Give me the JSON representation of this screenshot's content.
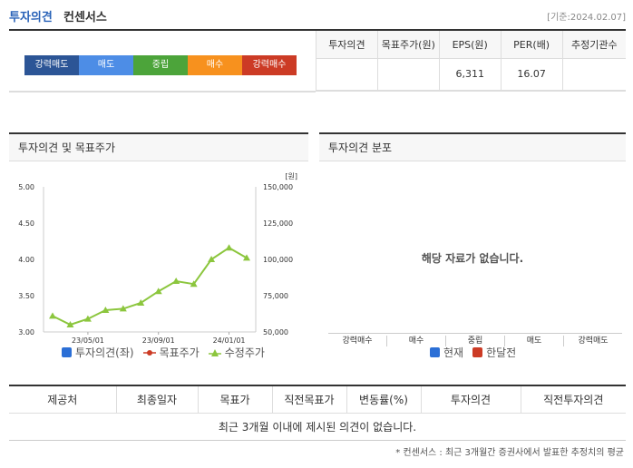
{
  "header": {
    "title_main": "투자의견",
    "title_sub": "컨센서스",
    "date": "[기준:2024.02.07]"
  },
  "opinion_buttons": [
    {
      "label": "강력매도",
      "color": "#2c5596"
    },
    {
      "label": "매도",
      "color": "#4d8de6"
    },
    {
      "label": "중립",
      "color": "#4ca43a"
    },
    {
      "label": "매수",
      "color": "#f7911e"
    },
    {
      "label": "강력매수",
      "color": "#cc3b25"
    }
  ],
  "summary": {
    "headers": [
      "투자의견",
      "목표주가(원)",
      "EPS(원)",
      "PER(배)",
      "추정기관수"
    ],
    "values": [
      "",
      "",
      "6,311",
      "16.07",
      ""
    ]
  },
  "left_panel": {
    "title": "투자의견 및 목표주가",
    "legend": [
      {
        "label": "투자의견(좌)",
        "color": "#2b6fd6",
        "icon": "square-icon"
      },
      {
        "label": "목표주가",
        "color": "#cc3b25",
        "icon": "dot-line-icon"
      },
      {
        "label": "수정주가",
        "color": "#8cc63e",
        "icon": "triangle-line-icon"
      }
    ]
  },
  "right_panel": {
    "title": "투자의견 분포",
    "empty_text": "해당 자료가 없습니다.",
    "categories": [
      "강력매수",
      "매수",
      "중립",
      "매도",
      "강력매도"
    ],
    "legend": [
      {
        "label": "현재",
        "color": "#2b6fd6"
      },
      {
        "label": "한달전",
        "color": "#cc3b25"
      }
    ]
  },
  "chart_data": {
    "type": "line",
    "x": [
      "23/03",
      "23/04",
      "23/05",
      "23/06",
      "23/07",
      "23/08",
      "23/09",
      "23/10",
      "23/11",
      "23/12",
      "24/01",
      "24/02"
    ],
    "x_ticks": [
      "23/05/01",
      "23/09/01",
      "24/01/01"
    ],
    "y_left_ticks": [
      "5.00",
      "4.50",
      "4.00",
      "3.50",
      "3.00"
    ],
    "y_left_range": [
      3.0,
      5.0
    ],
    "y_right_ticks": [
      "150,000",
      "125,000",
      "100,000",
      "75,000",
      "50,000"
    ],
    "y_right_range": [
      50000,
      150000
    ],
    "y_right_unit": "[원]",
    "series": [
      {
        "name": "수정주가",
        "values": [
          61000,
          55000,
          59000,
          65000,
          66000,
          70000,
          78000,
          85000,
          83000,
          100000,
          108000,
          101000
        ]
      }
    ]
  },
  "bottom_table": {
    "headers": [
      "제공처",
      "최종일자",
      "목표가",
      "직전목표가",
      "변동률(%)",
      "투자의견",
      "직전투자의견"
    ],
    "empty_text": "최근 3개월 이내에 제시된 의견이 없습니다."
  },
  "footnote": "* 컨센서스 : 최근 3개월간 증권사에서 발표한 추정치의 평균"
}
